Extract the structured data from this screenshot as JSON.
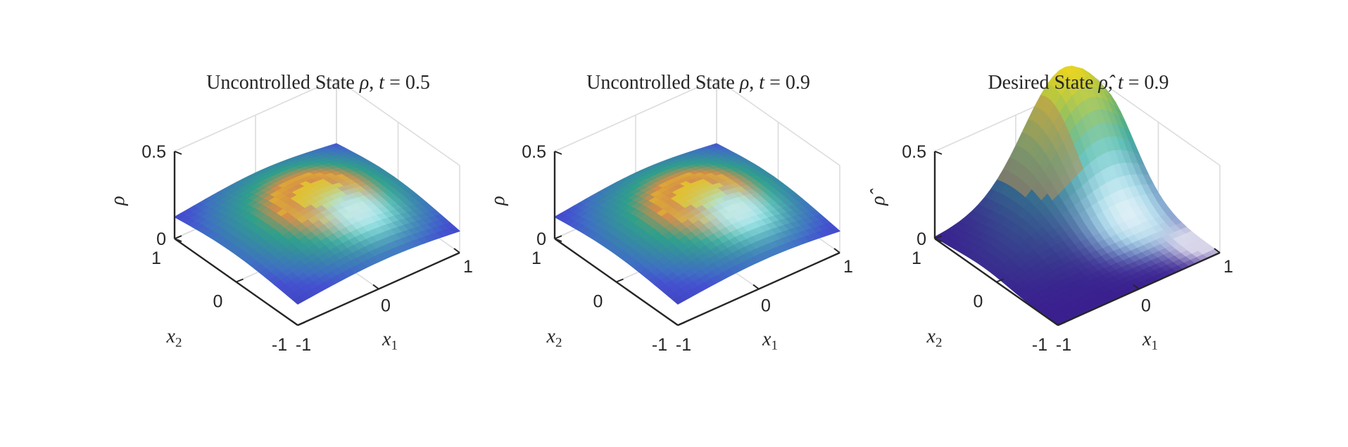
{
  "figure": {
    "colors": {
      "surface_low": "#3a1f8f",
      "surface_mid": "#2fa08a",
      "surface_high": "#e8d420",
      "highlight": "#ffffff",
      "axis": "#262626",
      "grid": "#dcdcdc"
    }
  },
  "chart_data": [
    {
      "type": "surface",
      "title": {
        "prefix": "Uncontrolled State ",
        "symbol": "ρ",
        "mid": ", ",
        "tvar": "t",
        "rest": " = 0.5"
      },
      "xlabel": {
        "base": "x",
        "sub": "1"
      },
      "ylabel": {
        "base": "x",
        "sub": "2"
      },
      "zlabel": "ρ",
      "xlim": [
        -1,
        1
      ],
      "ylim": [
        -1,
        1
      ],
      "zlim": [
        0,
        0.5
      ],
      "xticks": [
        "-1",
        "0",
        "1"
      ],
      "yticks": [
        "-1",
        "0",
        "1"
      ],
      "zticks": [
        "0",
        "0.5"
      ],
      "surface": {
        "kind": "bump",
        "base": 0.1,
        "peak": 0.27,
        "center": [
          0.1,
          0.1
        ],
        "spread": 0.9
      },
      "grid": true
    },
    {
      "type": "surface",
      "title": {
        "prefix": "Uncontrolled State ",
        "symbol": "ρ",
        "mid": ", ",
        "tvar": "t",
        "rest": " = 0.9"
      },
      "xlabel": {
        "base": "x",
        "sub": "1"
      },
      "ylabel": {
        "base": "x",
        "sub": "2"
      },
      "zlabel": "ρ",
      "xlim": [
        -1,
        1
      ],
      "ylim": [
        -1,
        1
      ],
      "zlim": [
        0,
        0.5
      ],
      "xticks": [
        "-1",
        "0",
        "1"
      ],
      "yticks": [
        "-1",
        "0",
        "1"
      ],
      "zticks": [
        "0",
        "0.5"
      ],
      "surface": {
        "kind": "bump",
        "base": 0.1,
        "peak": 0.27,
        "center": [
          0.1,
          0.1
        ],
        "spread": 0.9
      },
      "grid": true
    },
    {
      "type": "surface",
      "title": {
        "prefix": "Desired State ",
        "symbol": "ρ̂",
        "mid": ", ",
        "tvar": "t",
        "rest": " = 0.9"
      },
      "xlabel": {
        "base": "x",
        "sub": "1"
      },
      "ylabel": {
        "base": "x",
        "sub": "2"
      },
      "zlabel": "ρ̂",
      "xlim": [
        -1,
        1
      ],
      "ylim": [
        -1,
        1
      ],
      "zlim": [
        0,
        0.5
      ],
      "xticks": [
        "-1",
        "0",
        "1"
      ],
      "yticks": [
        "-1",
        "0",
        "1"
      ],
      "zticks": [
        "0",
        "0.5"
      ],
      "surface": {
        "kind": "ridge",
        "base": 0.0,
        "peak": 0.66,
        "center": [
          1,
          1
        ],
        "spread": 0.9
      },
      "grid": true
    }
  ]
}
